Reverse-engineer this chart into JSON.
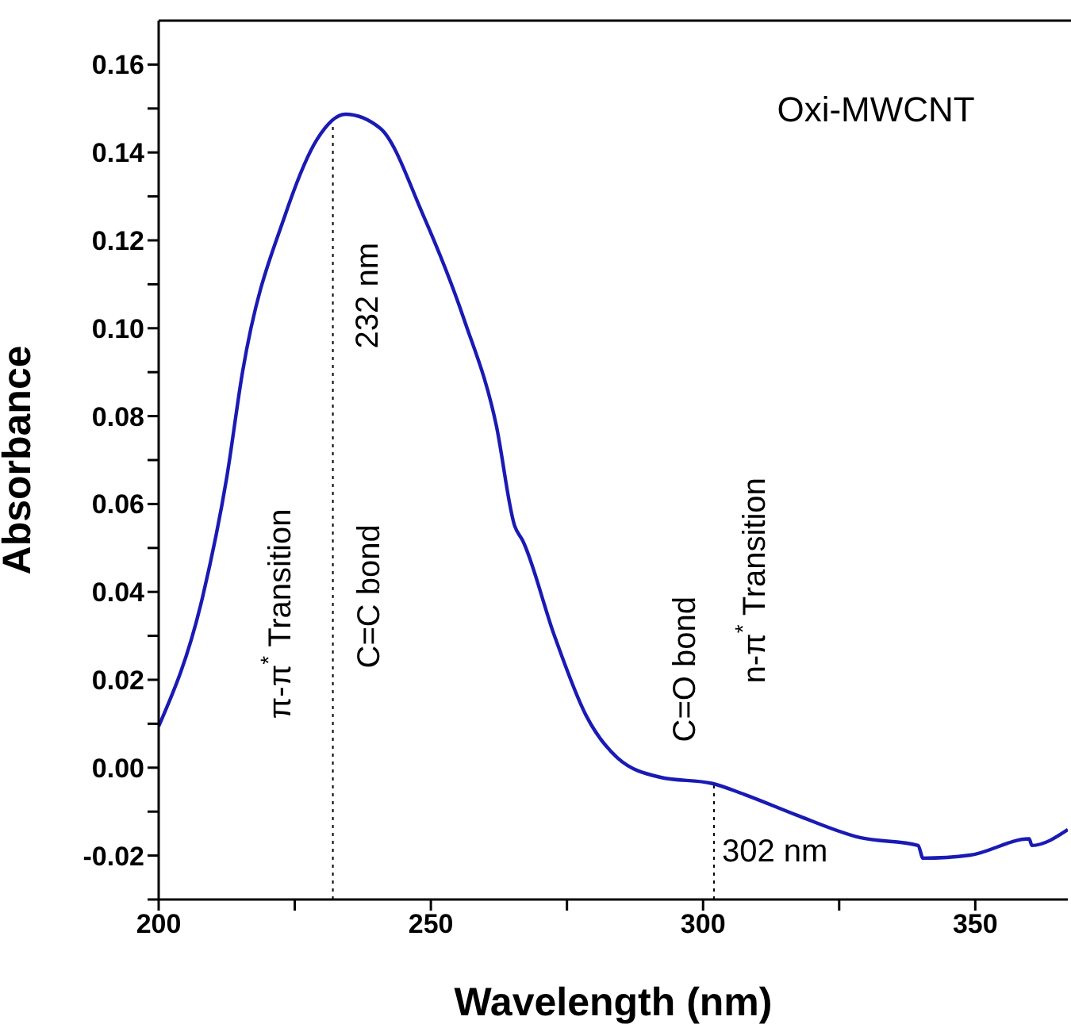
{
  "chart_data": {
    "type": "line",
    "xlabel": "Wavelength (nm)",
    "ylabel": "Absorbance",
    "x": [
      200,
      208.1,
      212.5,
      215.4,
      223.3,
      229.1,
      234.3,
      240.7,
      248.5,
      256.1,
      262,
      265.4,
      266.9,
      272.7,
      278.5,
      284.3,
      292.2,
      301.7,
      307.6,
      317.2,
      328.8,
      339.5,
      340.4,
      349.1,
      359.9,
      360.4,
      367
    ],
    "series": [
      {
        "color": "#1a1ab4",
        "values": [
          0.0094,
          0.039,
          0.066,
          0.09,
          0.126,
          0.143,
          0.1487,
          0.1455,
          0.126,
          0.102,
          0.078,
          0.055,
          0.0516,
          0.03,
          0.0119,
          0.0022,
          -0.0022,
          -0.0036,
          -0.0061,
          -0.0108,
          -0.0159,
          -0.0177,
          -0.0206,
          -0.0199,
          -0.0162,
          -0.0177,
          -0.0141
        ]
      }
    ],
    "xlim": [
      200,
      367
    ],
    "xticks": [
      200,
      {
        "value": 225,
        "label": null
      },
      250,
      {
        "value": 275,
        "label": null
      },
      300,
      {
        "value": 325,
        "label": null
      },
      350
    ],
    "ylim": [
      -0.03,
      0.17
    ],
    "yticks": [
      {
        "value": -0.03,
        "label": null
      },
      {
        "value": -0.02,
        "label": "-0.02"
      },
      {
        "value": -0.01,
        "label": null
      },
      {
        "value": 0,
        "label": "0.00"
      },
      {
        "value": 0.01,
        "label": null
      },
      {
        "value": 0.02,
        "label": "0.02"
      },
      {
        "value": 0.03,
        "label": null
      },
      {
        "value": 0.04,
        "label": "0.04"
      },
      {
        "value": 0.05,
        "label": null
      },
      {
        "value": 0.06,
        "label": "0.06"
      },
      {
        "value": 0.07,
        "label": null
      },
      {
        "value": 0.08,
        "label": "0.08"
      },
      {
        "value": 0.09,
        "label": null
      },
      {
        "value": 0.1,
        "label": "0.10"
      },
      {
        "value": 0.11,
        "label": null
      },
      {
        "value": 0.12,
        "label": "0.12"
      },
      {
        "value": 0.13,
        "label": null
      },
      {
        "value": 0.14,
        "label": "0.14"
      },
      {
        "value": 0.15,
        "label": null
      },
      {
        "value": 0.16,
        "label": "0.16"
      }
    ],
    "ref_lines": [
      {
        "axis": "x",
        "value": 232,
        "label": "232 nm",
        "line_style": "dotted"
      },
      {
        "axis": "x",
        "value": 302,
        "label": "302 nm",
        "line_style": "dotted"
      }
    ],
    "annotations": [
      "Oxi-MWCNT",
      "π-π$^{*}$ Transition",
      "C=C bond",
      "C=O bond",
      "n-π$^{*}$ Transition"
    ],
    "grid": false,
    "marker": "none",
    "line_style": "solid",
    "legend": false
  }
}
